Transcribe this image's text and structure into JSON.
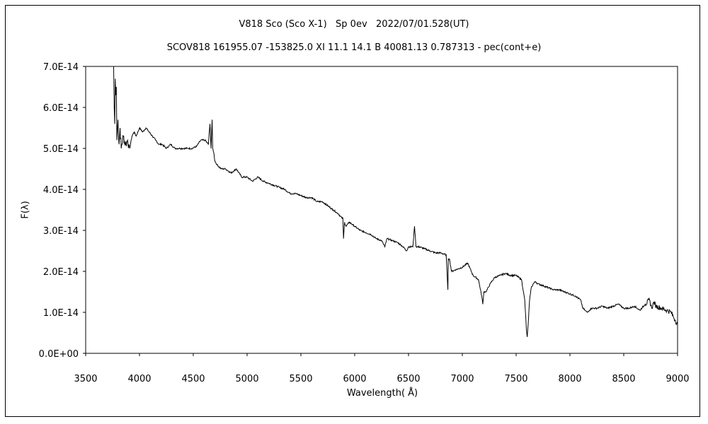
{
  "chart_data": {
    "type": "line",
    "title": "V818 Sco (Sco X-1)   Sp 0ev   2022/07/01.528(UT)",
    "subtitle": "SCOV818 161955.07 -153825.0 XI 11.1 14.1 B 40081.13 0.787313 - pec(cont+e)",
    "xlabel": "Wavelength( Å)",
    "ylabel": "F(λ)",
    "xlim": [
      3500,
      9000
    ],
    "ylim": [
      0,
      7e-14
    ],
    "xticks": [
      "3500",
      "4000",
      "4500",
      "5000",
      "5500",
      "6000",
      "6500",
      "7000",
      "7500",
      "8000",
      "8500",
      "9000"
    ],
    "yticks": [
      "0.0E+00",
      "1.0E-14",
      "2.0E-14",
      "3.0E-14",
      "4.0E-14",
      "5.0E-14",
      "6.0E-14",
      "7.0E-14"
    ],
    "grid": false,
    "series": [
      {
        "x": [
          3760,
          3765,
          3770,
          3775,
          3780,
          3785,
          3790,
          3800,
          3810,
          3820,
          3830,
          3850,
          3870,
          3890,
          3910,
          3930,
          3950,
          3970,
          4000,
          4030,
          4060,
          4090,
          4120,
          4150,
          4180,
          4210,
          4250,
          4290,
          4330,
          4370,
          4410,
          4450,
          4490,
          4530,
          4570,
          4610,
          4640,
          4655,
          4665,
          4675,
          4680,
          4690,
          4700,
          4720,
          4760,
          4800,
          4850,
          4900,
          4950,
          5000,
          5050,
          5100,
          5150,
          5200,
          5250,
          5300,
          5350,
          5400,
          5450,
          5500,
          5550,
          5600,
          5650,
          5700,
          5750,
          5800,
          5850,
          5880,
          5890,
          5896,
          5905,
          5920,
          5950,
          6000,
          6050,
          6100,
          6150,
          6200,
          6250,
          6280,
          6300,
          6350,
          6400,
          6450,
          6480,
          6500,
          6540,
          6556,
          6570,
          6600,
          6650,
          6700,
          6750,
          6800,
          6850,
          6866,
          6870,
          6880,
          6900,
          6950,
          7000,
          7050,
          7100,
          7150,
          7180,
          7190,
          7200,
          7220,
          7260,
          7300,
          7350,
          7400,
          7450,
          7500,
          7550,
          7580,
          7595,
          7603,
          7612,
          7625,
          7640,
          7660,
          7680,
          7700,
          7750,
          7800,
          7850,
          7900,
          7950,
          8000,
          8050,
          8100,
          8120,
          8140,
          8160,
          8180,
          8200,
          8250,
          8300,
          8350,
          8400,
          8450,
          8500,
          8550,
          8600,
          8650,
          8700,
          8740,
          8760,
          8780,
          8800,
          8850,
          8900,
          8940,
          8960,
          8980,
          9000
        ],
        "y": [
          7.0,
          6.0,
          5.6,
          6.7,
          6.3,
          6.5,
          5.2,
          5.7,
          5.1,
          5.5,
          5.0,
          5.3,
          5.1,
          5.2,
          5.0,
          5.3,
          5.4,
          5.3,
          5.5,
          5.4,
          5.5,
          5.4,
          5.3,
          5.2,
          5.1,
          5.1,
          5.0,
          5.1,
          5.0,
          5.0,
          5.0,
          5.0,
          5.0,
          5.05,
          5.2,
          5.2,
          5.1,
          5.6,
          5.0,
          5.7,
          5.0,
          4.9,
          4.7,
          4.6,
          4.5,
          4.5,
          4.4,
          4.5,
          4.3,
          4.3,
          4.2,
          4.3,
          4.2,
          4.15,
          4.1,
          4.05,
          4.0,
          3.9,
          3.9,
          3.85,
          3.8,
          3.8,
          3.7,
          3.7,
          3.6,
          3.5,
          3.4,
          3.3,
          3.3,
          2.8,
          3.2,
          3.1,
          3.2,
          3.1,
          3.0,
          2.95,
          2.9,
          2.8,
          2.75,
          2.6,
          2.8,
          2.75,
          2.7,
          2.6,
          2.5,
          2.6,
          2.6,
          3.1,
          2.6,
          2.6,
          2.55,
          2.5,
          2.45,
          2.45,
          2.4,
          1.55,
          2.3,
          2.3,
          2.0,
          2.05,
          2.1,
          2.2,
          1.9,
          1.8,
          1.4,
          1.2,
          1.5,
          1.5,
          1.7,
          1.85,
          1.9,
          1.95,
          1.9,
          1.9,
          1.8,
          1.3,
          0.6,
          0.4,
          0.7,
          1.3,
          1.6,
          1.7,
          1.75,
          1.7,
          1.65,
          1.6,
          1.55,
          1.55,
          1.5,
          1.45,
          1.4,
          1.3,
          1.1,
          1.05,
          1.0,
          1.05,
          1.1,
          1.1,
          1.15,
          1.1,
          1.15,
          1.2,
          1.1,
          1.1,
          1.15,
          1.05,
          1.2,
          1.3,
          1.1,
          1.25,
          1.15,
          1.1,
          1.05,
          1.0,
          0.9,
          0.8,
          0.7
        ]
      }
    ]
  }
}
